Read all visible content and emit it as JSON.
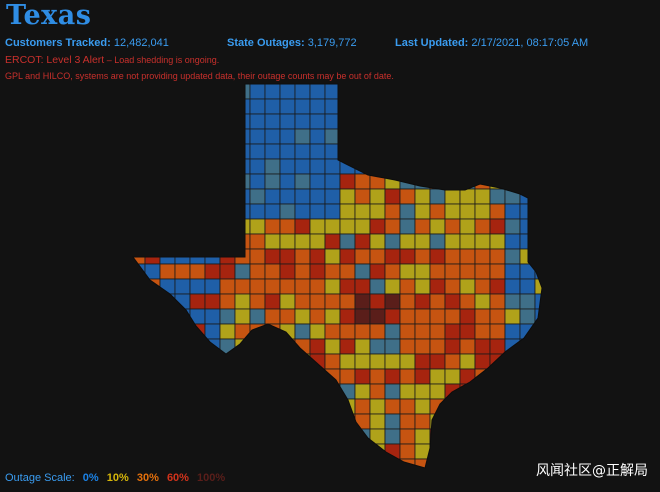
{
  "header": {
    "title": "Texas"
  },
  "stats": {
    "customers_label": "Customers Tracked:",
    "customers_value": "12,482,041",
    "outages_label": "State Outages:",
    "outages_value": "3,179,772",
    "updated_label": "Last Updated:",
    "updated_value": "2/17/2021, 08:17:05 AM"
  },
  "alerts": {
    "ercot_main": "ERCOT: Level 3 Alert",
    "ercot_sub": " – Load shedding is ongoing.",
    "systems_note": "GPL and HILCO, systems are not providing updated data, their outage counts may be out of date."
  },
  "scale": {
    "label": "Outage Scale:",
    "levels": [
      "0%",
      "10%",
      "30%",
      "60%",
      "100%"
    ]
  },
  "colors": {
    "background": "#121212",
    "accent": "#2f8de4",
    "alert": "#c9302c",
    "level_0": "#1f5fa8",
    "level_10": "#b0a21a",
    "level_30": "#c65411",
    "level_60": "#a6240f",
    "level_100": "#5a1e1a"
  },
  "watermark": "风闻社区@正解局"
}
